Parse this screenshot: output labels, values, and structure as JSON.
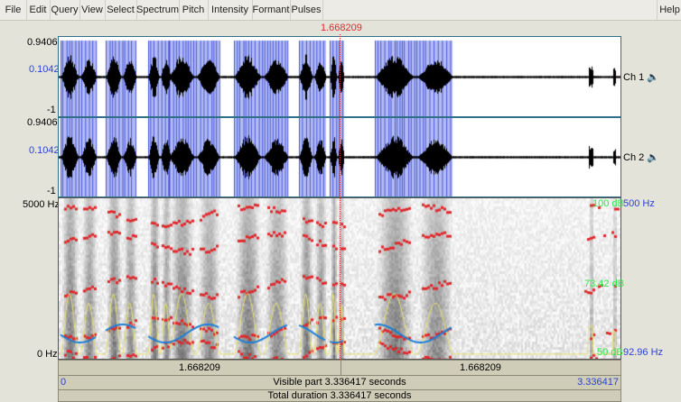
{
  "menu": [
    "File",
    "Edit",
    "Query",
    "View",
    "Select",
    "Spectrum",
    "Pitch",
    "Intensity",
    "Formant",
    "Pulses"
  ],
  "help": "Help",
  "cursor_time": "1.668209",
  "channels": [
    {
      "max": "0.9406",
      "mid": "0.1042",
      "min": "-1",
      "name": "Ch 1"
    },
    {
      "max": "0.9406",
      "mid": "0.1042",
      "min": "-1",
      "name": "Ch 2"
    }
  ],
  "spectrogram": {
    "top": "5000 Hz",
    "bottom": "0 Hz",
    "pitch_top": "500 Hz",
    "pitch_bottom": "92.96 Hz",
    "intensity_top": "100 dB",
    "intensity_mid": "73.42 dB",
    "intensity_bottom": "50 dB"
  },
  "time_bar": {
    "left": "1.668209",
    "right": "1.668209"
  },
  "visible_bar": {
    "start": "0",
    "label": "Visible part 3.336417 seconds",
    "end": "3.336417"
  },
  "total_bar": {
    "label": "Total duration 3.336417 seconds"
  },
  "colors": {
    "pulses": "#2b3fd6",
    "formants": "#e2262a",
    "pitch": "#1a7fd8",
    "intensity": "#e8e070",
    "cursor": "#e2262a"
  }
}
